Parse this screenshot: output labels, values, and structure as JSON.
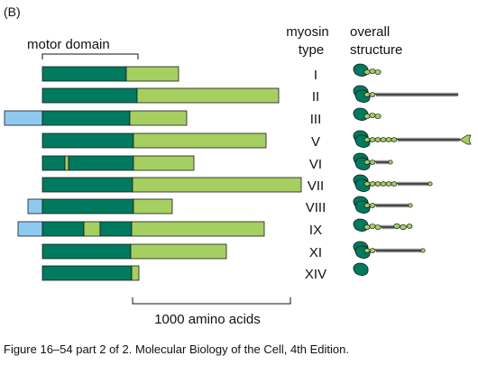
{
  "panel_label": "(B)",
  "motor_domain_label": "motor domain",
  "header": {
    "type_line1": "myosin",
    "type_line2": "type",
    "structure_line1": "overall",
    "structure_line2": "structure"
  },
  "scale_label": "1000 amino acids",
  "caption": "Figure 16–54 part 2 of 2. Molecular Biology of the Cell, 4th Edition.",
  "colors": {
    "motor": "#007a5e",
    "tail": "#a6cf62",
    "extension": "#8ecaf0",
    "outline": "#1a1a1a"
  },
  "myosins": [
    {
      "type": "I",
      "tail": "short"
    },
    {
      "type": "II",
      "tail": "long-coil"
    },
    {
      "type": "III",
      "tail": "short"
    },
    {
      "type": "V",
      "tail": "coil-globular"
    },
    {
      "type": "VI",
      "tail": "short-coil"
    },
    {
      "type": "VII",
      "tail": "globular-end"
    },
    {
      "type": "VIII",
      "tail": "short-coil-end"
    },
    {
      "type": "IX",
      "tail": "beaded"
    },
    {
      "type": "XI",
      "tail": "coil-globular-end"
    },
    {
      "type": "XIV",
      "tail": "none"
    }
  ]
}
